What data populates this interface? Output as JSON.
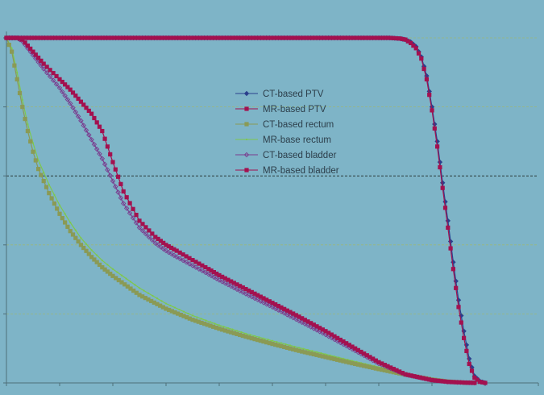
{
  "chart_data": {
    "type": "line",
    "title": "",
    "xlabel": "",
    "ylabel": "",
    "xlim": [
      0,
      100
    ],
    "ylim": [
      0,
      100
    ],
    "grid": "horizontal dashed",
    "legend_placement": "center",
    "colors": {
      "background": "#7eb4c7",
      "ptv": "#a3114f",
      "ct_ptv": "#2b3f8c",
      "rectum": "#8a9a55",
      "rectum_mr": "#7ec84c",
      "bladder_ct": "#7a3d8f",
      "bladder_mr": "#a3114f"
    },
    "series": [
      {
        "name": "CT-based PTV",
        "marker": "diamond",
        "color": "#2b3f8c",
        "x": [
          0,
          20,
          40,
          60,
          70,
          72,
          74,
          75,
          76,
          77,
          78,
          79,
          80,
          81,
          82,
          83,
          84,
          85,
          86,
          87,
          88,
          89,
          90
        ],
        "y": [
          100,
          100,
          100,
          100,
          100,
          100,
          99.8,
          99.5,
          98.8,
          97.5,
          94.5,
          89,
          80,
          70,
          58,
          47,
          35,
          24,
          15,
          7,
          2,
          0.5,
          0
        ]
      },
      {
        "name": "MR-based PTV",
        "marker": "square",
        "color": "#a3114f",
        "x": [
          0,
          20,
          40,
          60,
          70,
          72,
          74,
          75,
          76,
          77,
          78,
          79,
          80,
          81,
          82,
          83,
          84,
          85,
          86,
          87,
          88,
          89,
          90
        ],
        "y": [
          100,
          100,
          100,
          100,
          100,
          100,
          99.8,
          99.5,
          98.5,
          97,
          94,
          88,
          79,
          68.5,
          56.5,
          45,
          33,
          22,
          13,
          5.5,
          1.5,
          0.3,
          0
        ]
      },
      {
        "name": "CT-based rectum",
        "marker": "square",
        "color": "#8a9a55",
        "x": [
          0,
          1,
          2,
          3,
          4,
          5,
          6,
          8,
          10,
          12,
          14,
          16,
          18,
          20,
          25,
          30,
          35,
          40,
          45,
          50,
          55,
          60,
          65,
          70,
          75,
          80,
          83,
          86,
          88
        ],
        "y": [
          100,
          96,
          88,
          80,
          73,
          67,
          62,
          55,
          49,
          44,
          40,
          36.5,
          33.5,
          31,
          25.5,
          21.5,
          18.3,
          15.7,
          13.4,
          11.3,
          9.3,
          7.5,
          5.7,
          4,
          2.4,
          1,
          0.4,
          0.1,
          0
        ]
      },
      {
        "name": "MR-base rectum",
        "marker": "dot",
        "color": "#7ec84c",
        "x": [
          0,
          1,
          2,
          3,
          4,
          5,
          6,
          8,
          10,
          12,
          14,
          16,
          18,
          20,
          25,
          30,
          35,
          40,
          45,
          50,
          55,
          60,
          65,
          70,
          75,
          80,
          83,
          86,
          88
        ],
        "y": [
          100,
          97,
          90,
          82,
          75,
          69.5,
          64.5,
          57.5,
          51.5,
          46.5,
          42,
          38.5,
          35.5,
          33,
          27.5,
          23,
          19.5,
          16.7,
          14.3,
          12.2,
          10.2,
          8.3,
          6.4,
          4.6,
          2.8,
          1.2,
          0.5,
          0.1,
          0
        ]
      },
      {
        "name": "CT-based bladder",
        "marker": "diamond-open",
        "color": "#7a3d8f",
        "x": [
          0,
          2,
          3,
          5,
          7,
          10,
          12,
          14,
          16,
          18,
          20,
          22,
          25,
          28,
          30,
          32,
          35,
          38,
          40,
          45,
          50,
          55,
          60,
          65,
          70,
          75,
          80,
          83,
          86,
          88
        ],
        "y": [
          100,
          100,
          99,
          95,
          91,
          85.5,
          81,
          76,
          70.5,
          65,
          58.5,
          52,
          45,
          40.5,
          38.3,
          36.5,
          34,
          31.5,
          29.8,
          25.8,
          22,
          18,
          14,
          9.8,
          5.6,
          2.4,
          0.8,
          0.3,
          0.1,
          0
        ]
      },
      {
        "name": "MR-based bladder",
        "marker": "square",
        "color": "#a3114f",
        "x": [
          0,
          2,
          3,
          5,
          7,
          10,
          12,
          14,
          16,
          18,
          20,
          22,
          25,
          28,
          30,
          32,
          35,
          38,
          40,
          45,
          50,
          55,
          60,
          65,
          70,
          75,
          80,
          83,
          86,
          88
        ],
        "y": [
          100,
          100,
          99.5,
          96,
          92.5,
          88,
          85,
          81.5,
          78,
          73,
          64,
          55.5,
          47,
          42.3,
          40,
          38.3,
          35.6,
          33,
          31.2,
          27.2,
          23.2,
          19.2,
          15,
          10.5,
          6,
          2.5,
          0.8,
          0.3,
          0.1,
          0
        ]
      }
    ]
  }
}
